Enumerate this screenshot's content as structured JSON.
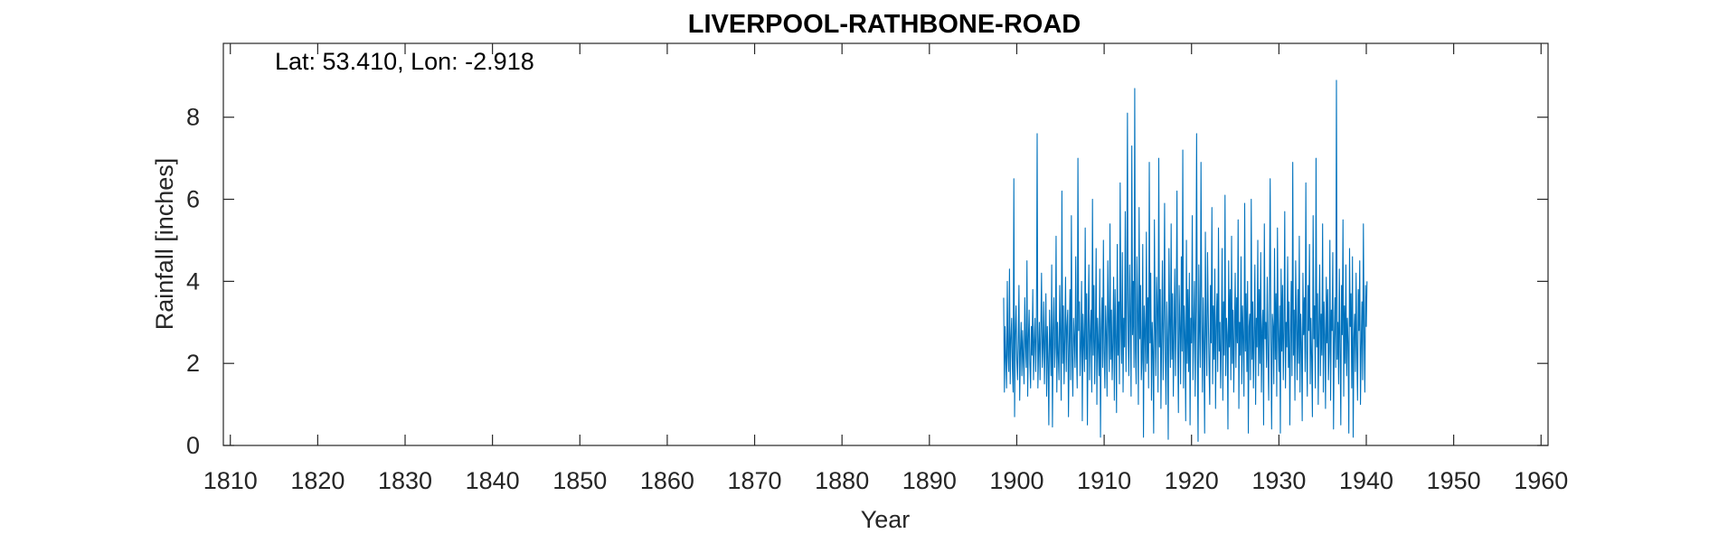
{
  "chart_data": {
    "type": "line",
    "title": "LIVERPOOL-RATHBONE-ROAD",
    "annotation": "Lat: 53.410, Lon: -2.918",
    "xlabel": "Year",
    "ylabel": "Rainfall [inches]",
    "xlim": [
      1809.2,
      1960.8
    ],
    "ylim": [
      0,
      9.8
    ],
    "xticks": [
      1810,
      1820,
      1830,
      1840,
      1850,
      1860,
      1870,
      1880,
      1890,
      1900,
      1910,
      1920,
      1930,
      1940,
      1950,
      1960
    ],
    "yticks": [
      0,
      2,
      4,
      6,
      8
    ],
    "grid": false,
    "legend": "none",
    "colors": {
      "series": "#0072BD",
      "axes": "#262626"
    },
    "series": [
      {
        "x_start": 1898.5,
        "x_step": 0.08333333,
        "values": [
          3.6,
          1.3,
          2.9,
          2.1,
          1.4,
          4.0,
          2.2,
          1.8,
          4.3,
          1.5,
          2.6,
          3.1,
          1.9,
          1.3,
          6.5,
          0.7,
          2.7,
          3.4,
          2.1,
          1.6,
          2.5,
          3.9,
          1.1,
          2.3,
          3.0,
          1.7,
          2.8,
          2.1,
          1.5,
          3.6,
          2.4,
          1.9,
          4.5,
          1.2,
          2.6,
          3.3,
          2.0,
          1.4,
          2.9,
          2.2,
          3.8,
          1.6,
          2.5,
          3.1,
          1.8,
          2.7,
          7.6,
          1.4,
          2.3,
          3.0,
          1.6,
          2.8,
          4.2,
          1.9,
          2.4,
          3.5,
          1.5,
          2.6,
          3.7,
          1.2,
          2.9,
          2.1,
          0.5,
          3.3,
          2.5,
          1.7,
          4.4,
          0.45,
          2.8,
          3.6,
          1.9,
          2.4,
          5.1,
          1.3,
          3.0,
          2.2,
          1.6,
          3.9,
          2.7,
          1.1,
          6.2,
          2.0,
          3.4,
          1.5,
          2.6,
          4.1,
          1.8,
          2.9,
          3.3,
          0.7,
          2.4,
          3.8,
          1.6,
          5.6,
          2.2,
          1.2,
          3.1,
          2.6,
          1.9,
          4.6,
          2.3,
          1.4,
          7.0,
          2.8,
          3.5,
          1.7,
          2.4,
          4.0,
          0.6,
          3.2,
          2.5,
          1.8,
          5.3,
          2.1,
          3.7,
          0.5,
          2.9,
          4.4,
          1.6,
          2.7,
          3.3,
          1.3,
          6.0,
          2.2,
          3.9,
          1.5,
          2.6,
          4.8,
          1.0,
          3.1,
          2.4,
          1.7,
          4.3,
          0.2,
          2.8,
          3.6,
          1.9,
          5.0,
          2.3,
          1.4,
          3.4,
          2.7,
          1.2,
          4.5,
          3.0,
          1.8,
          5.4,
          2.1,
          3.3,
          1.6,
          2.5,
          4.1,
          1.1,
          3.8,
          2.6,
          0.8,
          4.9,
          2.2,
          3.5,
          1.5,
          6.4,
          2.9,
          2.0,
          4.7,
          1.3,
          3.1,
          2.4,
          5.7,
          1.8,
          3.6,
          8.1,
          2.5,
          1.7,
          4.4,
          3.0,
          1.2,
          7.3,
          2.7,
          4.0,
          1.9,
          8.7,
          2.3,
          1.5,
          4.6,
          3.2,
          1.0,
          5.8,
          2.6,
          3.9,
          1.6,
          2.1,
          4.9,
          0.2,
          3.4,
          2.8,
          1.8,
          5.2,
          2.0,
          3.6,
          1.4,
          6.9,
          2.5,
          4.2,
          1.1,
          3.0,
          2.3,
          0.3,
          5.5,
          2.9,
          1.7,
          4.1,
          3.3,
          1.3,
          7.0,
          2.4,
          3.8,
          0.9,
          2.7,
          4.5,
          1.6,
          3.1,
          5.9,
          2.2,
          1.0,
          3.5,
          2.6,
          0.15,
          4.8,
          3.0,
          1.9,
          5.4,
          2.1,
          3.7,
          1.2,
          2.8,
          4.3,
          1.7,
          3.2,
          6.2,
          2.4,
          0.8,
          3.9,
          2.9,
          1.5,
          4.6,
          2.3,
          7.2,
          1.4,
          3.4,
          2.7,
          0.6,
          5.0,
          2.0,
          3.8,
          1.8,
          4.2,
          0.5,
          3.1,
          2.5,
          5.6,
          1.6,
          2.9,
          4.0,
          1.2,
          3.3,
          7.6,
          2.2,
          0.1,
          4.4,
          2.8,
          1.9,
          6.9,
          3.0,
          1.3,
          3.6,
          2.4,
          0.3,
          5.2,
          2.7,
          1.7,
          4.7,
          3.2,
          2.0,
          1.0,
          3.9,
          2.5,
          5.8,
          1.5,
          3.4,
          2.1,
          4.3,
          0.9,
          2.9,
          3.7,
          1.8,
          5.3,
          2.3,
          3.0,
          1.4,
          2.6,
          4.8,
          1.1,
          3.5,
          2.2,
          6.1,
          1.7,
          3.1,
          2.7,
          0.4,
          4.5,
          2.4,
          3.8,
          1.6,
          5.1,
          2.0,
          3.3,
          1.3,
          2.8,
          4.2,
          1.9,
          3.6,
          2.5,
          5.5,
          0.9,
          3.0,
          2.2,
          4.6,
          1.5,
          3.4,
          2.6,
          1.2,
          5.9,
          2.3,
          3.7,
          1.8,
          4.0,
          0.3,
          2.9,
          3.2,
          1.6,
          6.0,
          2.1,
          3.5,
          1.4,
          2.7,
          4.4,
          1.0,
          3.1,
          2.4,
          5.0,
          1.7,
          3.8,
          2.0,
          4.7,
          1.3,
          2.8,
          3.3,
          0.5,
          5.4,
          2.6,
          3.0,
          1.9,
          4.1,
          2.2,
          1.1,
          3.6,
          6.5,
          2.5,
          0.4,
          3.2,
          2.9,
          1.5,
          4.8,
          2.1,
          3.7,
          1.2,
          5.3,
          2.7,
          1.8,
          3.4,
          0.3,
          4.3,
          2.3,
          3.9,
          1.6,
          2.8,
          5.7,
          1.4,
          3.0,
          2.4,
          4.6,
          1.9,
          3.5,
          0.5,
          2.6,
          4.0,
          1.7,
          6.9,
          2.2,
          3.3,
          1.1,
          4.5,
          2.9,
          1.6,
          3.8,
          2.0,
          5.1,
          1.3,
          3.2,
          2.5,
          0.6,
          4.2,
          2.7,
          3.6,
          1.8,
          6.4,
          2.3,
          1.2,
          3.9,
          2.8,
          4.9,
          1.5,
          3.1,
          2.1,
          0.7,
          5.6,
          2.6,
          3.4,
          1.4,
          7.0,
          2.4,
          3.7,
          1.0,
          2.9,
          4.4,
          1.7,
          3.2,
          2.2,
          5.4,
          1.3,
          3.5,
          2.7,
          0.9,
          4.1,
          2.5,
          3.8,
          1.6,
          2.3,
          5.0,
          1.1,
          3.3,
          2.8,
          4.7,
          0.4,
          2.6,
          3.6,
          1.9,
          8.9,
          2.1,
          3.0,
          1.5,
          4.3,
          2.4,
          0.5,
          3.9,
          2.7,
          5.5,
          1.2,
          3.4,
          2.0,
          4.4,
          1.7,
          3.1,
          2.5,
          0.3,
          4.8,
          2.9,
          3.7,
          1.4,
          4.6,
          0.2,
          2.6,
          3.2,
          1.8,
          4.2,
          2.3,
          1.1,
          3.8,
          2.8,
          4.5,
          1.0,
          2.4,
          3.5,
          1.6,
          5.4,
          2.7,
          1.3,
          3.9,
          2.9,
          4.0
        ]
      }
    ]
  }
}
